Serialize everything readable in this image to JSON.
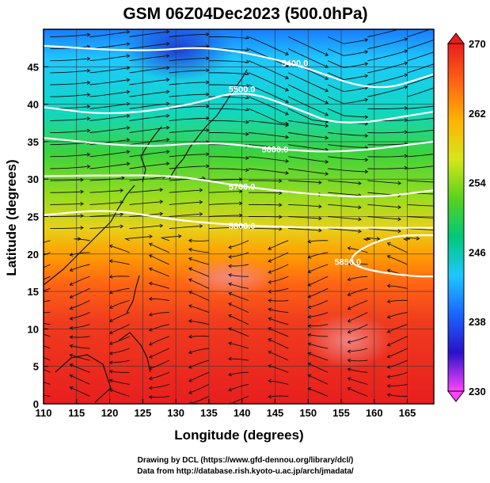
{
  "title": "GSM 06Z04Dec2023 (500.0hPa)",
  "xlabel": "Longitude (degrees)",
  "ylabel": "Latitude  (degrees)",
  "x_ticks": [
    "110",
    "115",
    "120",
    "125",
    "130",
    "135",
    "140",
    "145",
    "150",
    "155",
    "160",
    "165"
  ],
  "y_ticks": [
    "0",
    "5",
    "10",
    "15",
    "20",
    "25",
    "30",
    "35",
    "40",
    "45"
  ],
  "colorbar": {
    "labels": [
      "270",
      "262",
      "254",
      "246",
      "238",
      "230"
    ],
    "range": [
      230,
      270
    ],
    "colors": [
      "#ff44ff",
      "#2a12c8",
      "#1a66ff",
      "#1ec8ff",
      "#00c87a",
      "#5ad21e",
      "#d6e61a",
      "#ffb400",
      "#ff6414",
      "#e81e1e"
    ]
  },
  "contours": [
    {
      "label": "5400.0",
      "lat_at_lon": [
        [
          110,
          47.8
        ],
        [
          125,
          47.0
        ],
        [
          135,
          47.8
        ],
        [
          148,
          45.5
        ],
        [
          160,
          41.5
        ],
        [
          169,
          44.0
        ]
      ]
    },
    {
      "label": "5500.0",
      "lat_at_lon": [
        [
          110,
          39.6
        ],
        [
          120,
          38.5
        ],
        [
          132,
          39.8
        ],
        [
          140,
          42.0
        ],
        [
          148,
          39.5
        ],
        [
          155,
          37.0
        ],
        [
          169,
          39.0
        ]
      ]
    },
    {
      "label": "5600.0",
      "lat_at_lon": [
        [
          110,
          35.5
        ],
        [
          125,
          34.2
        ],
        [
          135,
          35.0
        ],
        [
          145,
          34.0
        ],
        [
          155,
          33.5
        ],
        [
          169,
          35.0
        ]
      ]
    },
    {
      "label": "5700.0",
      "lat_at_lon": [
        [
          110,
          30.4
        ],
        [
          120,
          30.5
        ],
        [
          130,
          30.5
        ],
        [
          140,
          29.0
        ],
        [
          150,
          28.0
        ],
        [
          160,
          27.5
        ],
        [
          169,
          28.5
        ]
      ]
    },
    {
      "label": "5800.0",
      "lat_at_lon": [
        [
          110,
          25.2
        ],
        [
          120,
          26.0
        ],
        [
          130,
          24.5
        ],
        [
          140,
          23.8
        ],
        [
          150,
          23.5
        ],
        [
          160,
          23.5
        ],
        [
          169,
          23.5
        ]
      ]
    },
    {
      "label": "5850.0",
      "lat_at_lon": [
        [
          169,
          22.5
        ],
        [
          163,
          22.5
        ],
        [
          158,
          20.8
        ],
        [
          156,
          19.0
        ],
        [
          159,
          17.8
        ],
        [
          166,
          17.0
        ],
        [
          169,
          17.0
        ]
      ]
    }
  ],
  "footer": {
    "line1": "Drawing by DCL (https://www.gfd-dennou.org/library/dcl/)",
    "line2": "Data from http://database.rish.kyoto-u.ac.jp/arch/jmadata/"
  }
}
